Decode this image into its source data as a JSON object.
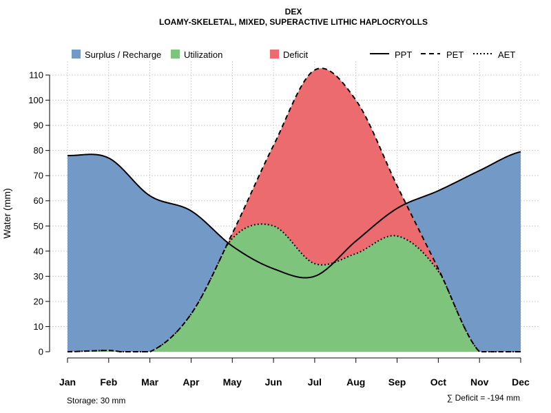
{
  "chart_data": {
    "type": "area",
    "title": "DEX",
    "subtitle": "LOAMY-SKELETAL, MIXED, SUPERACTIVE LITHIC HAPLOCRYOLLS",
    "xlabel": "",
    "ylabel": "Water (mm)",
    "ylim": [
      0,
      110
    ],
    "yticks": [
      "0",
      "10",
      "20",
      "30",
      "40",
      "50",
      "60",
      "70",
      "80",
      "90",
      "100",
      "110"
    ],
    "grid": true,
    "categories": [
      "Jan",
      "Feb",
      "Mar",
      "Apr",
      "May",
      "Jun",
      "Jul",
      "Aug",
      "Sep",
      "Oct",
      "Nov",
      "Dec"
    ],
    "series": [
      {
        "name": "PPT",
        "style": "solid",
        "values": [
          78,
          77,
          62,
          56,
          42,
          33,
          30,
          44,
          57,
          64,
          72,
          79.5
        ]
      },
      {
        "name": "PET",
        "style": "dashed",
        "values": [
          0,
          0.5,
          0,
          15,
          47,
          82,
          112,
          100,
          66,
          33,
          0,
          0
        ]
      },
      {
        "name": "AET",
        "style": "dotted",
        "values": [
          0,
          0.5,
          0,
          15,
          45,
          50,
          35,
          39,
          46,
          32,
          0,
          0
        ]
      }
    ],
    "areas": [
      {
        "name": "Surplus / Recharge",
        "color": "#7399c6"
      },
      {
        "name": "Utilization",
        "color": "#7fc47d"
      },
      {
        "name": "Deficit",
        "color": "#ec6b6e"
      }
    ],
    "legend_position": "top",
    "annotations": {
      "storage": "Storage: 30 mm",
      "deficit": "∑ Deficit = -194 mm"
    }
  }
}
